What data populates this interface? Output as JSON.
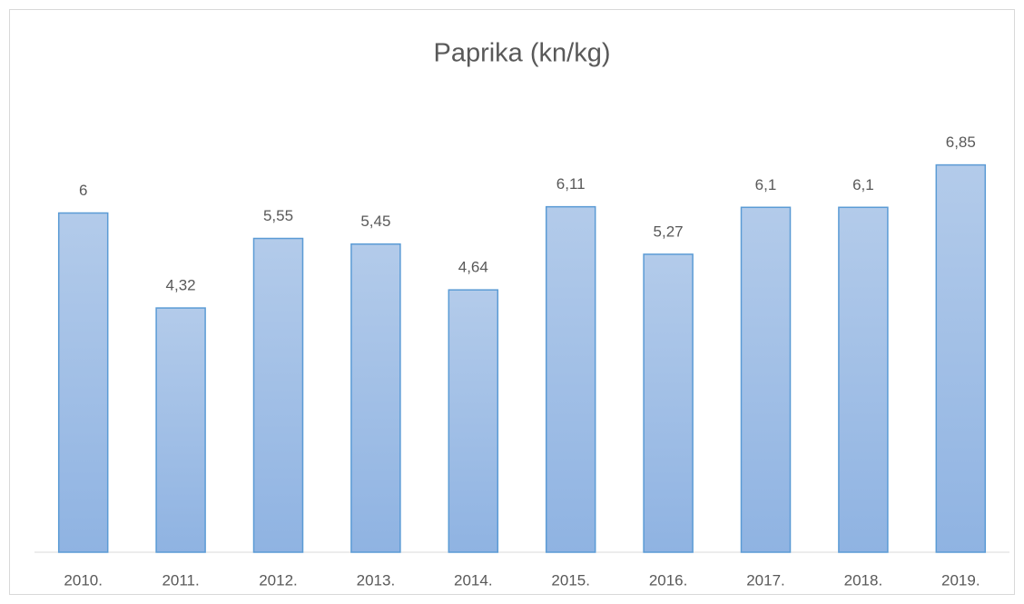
{
  "chart_data": {
    "type": "bar",
    "title": "Paprika (kn/kg)",
    "categories": [
      "2010.",
      "2011.",
      "2012.",
      "2013.",
      "2014.",
      "2015.",
      "2016.",
      "2017.",
      "2018.",
      "2019."
    ],
    "values": [
      6,
      4.32,
      5.55,
      5.45,
      4.64,
      6.11,
      5.27,
      6.1,
      6.1,
      6.85
    ],
    "value_labels": [
      "6",
      "4,32",
      "5,55",
      "5,45",
      "4,64",
      "6,11",
      "5,27",
      "6,1",
      "6,1",
      "6,85"
    ],
    "color": "#9dbde6",
    "ylim": [
      0,
      8
    ]
  }
}
